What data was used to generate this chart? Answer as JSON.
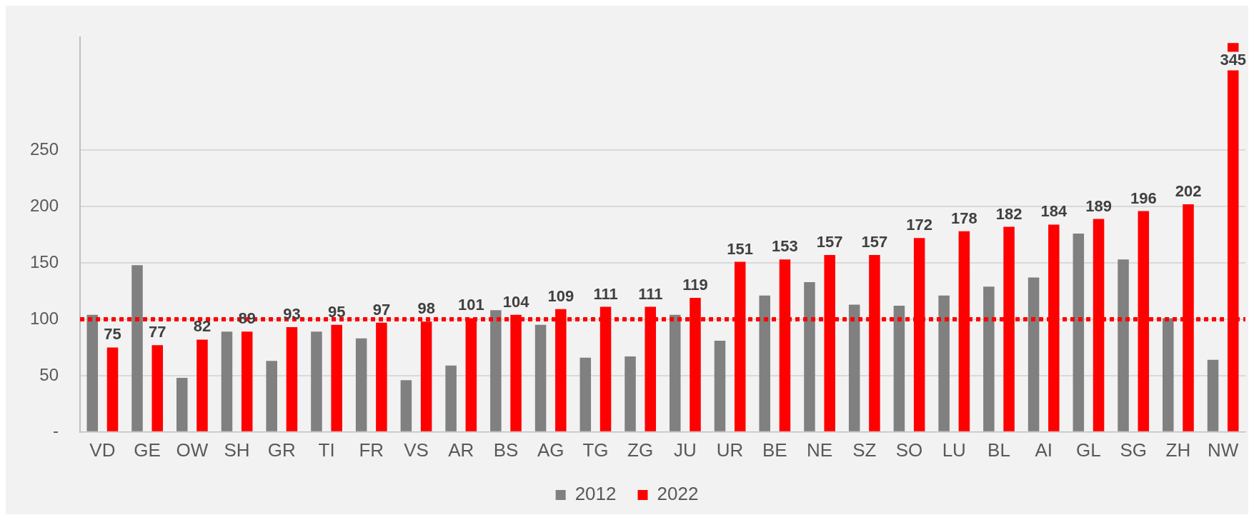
{
  "chart_data": {
    "type": "bar",
    "categories": [
      "VD",
      "GE",
      "OW",
      "SH",
      "GR",
      "TI",
      "FR",
      "VS",
      "AR",
      "BS",
      "AG",
      "TG",
      "ZG",
      "JU",
      "UR",
      "BE",
      "NE",
      "SZ",
      "SO",
      "LU",
      "BL",
      "AI",
      "GL",
      "SG",
      "ZH",
      "NW"
    ],
    "series": [
      {
        "name": "2012",
        "color": "#808080",
        "values": [
          104,
          148,
          48,
          89,
          63,
          89,
          83,
          46,
          59,
          108,
          95,
          66,
          67,
          104,
          81,
          121,
          133,
          113,
          112,
          121,
          129,
          137,
          176,
          153,
          101,
          64
        ]
      },
      {
        "name": "2022",
        "color": "#ff0000",
        "values": [
          75,
          77,
          82,
          89,
          93,
          95,
          97,
          98,
          101,
          104,
          109,
          111,
          111,
          119,
          151,
          153,
          157,
          157,
          172,
          178,
          182,
          184,
          189,
          196,
          202,
          345
        ],
        "value_labels": [
          "75",
          "77",
          "82",
          "89",
          "93",
          "95",
          "97",
          "98",
          "101",
          "104",
          "109",
          "111",
          "111",
          "119",
          "151",
          "153",
          "157",
          "157",
          "172",
          "178",
          "182",
          "184",
          "189",
          "196",
          "202",
          "345"
        ]
      }
    ],
    "ylim": [
      0,
      350
    ],
    "yticks": [
      {
        "value": 0,
        "label": "-"
      },
      50,
      100,
      150,
      200,
      250
    ],
    "grid": "y",
    "legend": "bottom",
    "ref_lines": [
      {
        "axis": "y",
        "value": 100,
        "color": "#ff0000",
        "line_style": "dotted"
      }
    ]
  }
}
